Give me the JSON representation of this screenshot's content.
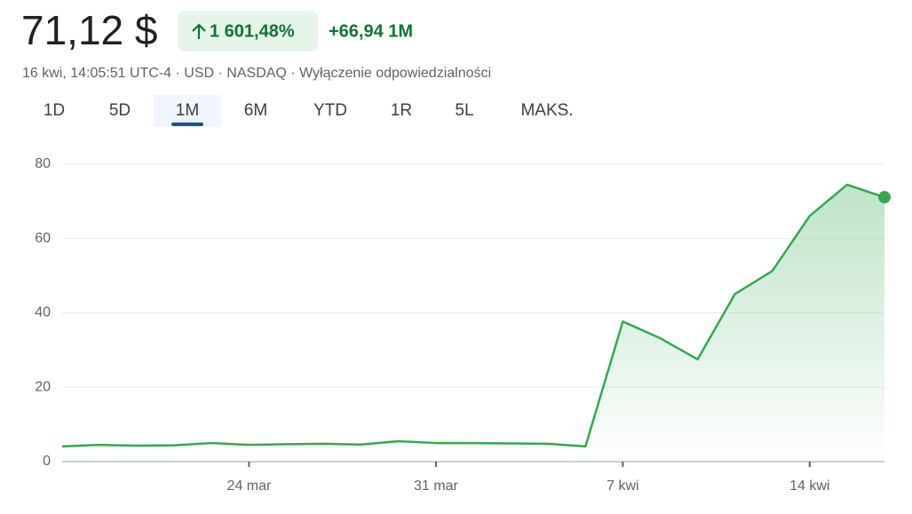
{
  "header": {
    "price": "71,12 $",
    "change_pct": "1 601,48%",
    "change_abs": "+66,94 1M",
    "meta": "16 kwi, 14:05:51 UTC-4 · USD · NASDAQ · Wyłączenie odpowiedzialności",
    "tabs": [
      "1D",
      "5D",
      "1M",
      "6M",
      "YTD",
      "1R",
      "5L",
      "MAKS."
    ],
    "selected_tab": 2
  },
  "chart_data": {
    "type": "line",
    "categories": [
      null,
      null,
      null,
      null,
      null,
      "24 mar",
      null,
      null,
      null,
      null,
      "31 mar",
      null,
      null,
      null,
      null,
      "7 kwi",
      null,
      null,
      null,
      null,
      "14 kwi",
      null,
      null
    ],
    "values": [
      4.1,
      4.5,
      4.3,
      4.4,
      5.0,
      4.5,
      4.7,
      4.8,
      4.6,
      5.5,
      5.0,
      5.0,
      4.9,
      4.8,
      4.1,
      37.7,
      33.2,
      27.5,
      45.1,
      51.3,
      66.1,
      74.5,
      71.12
    ],
    "color": "#34a853",
    "ylim": [
      0,
      80
    ],
    "yticks": [
      0,
      20,
      40,
      60,
      80
    ],
    "grid": true
  }
}
